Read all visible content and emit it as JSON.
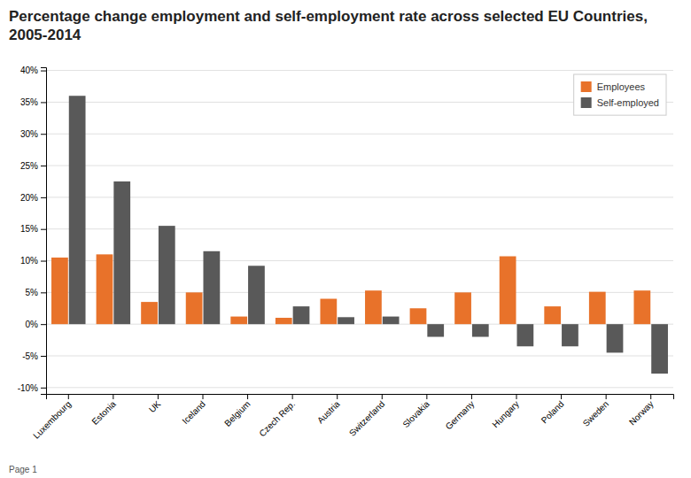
{
  "chart_data": {
    "type": "bar",
    "title": "Percentage change employment and self-employment rate across selected EU Countries, 2005-2014",
    "categories": [
      "Luxembourg",
      "Estonia",
      "UK",
      "Iceland",
      "Belgium",
      "Czech Rep.",
      "Austria",
      "Switzerland",
      "Slovakia",
      "Germany",
      "Hungary",
      "Poland",
      "Sweden",
      "Norway"
    ],
    "series": [
      {
        "name": "Employees",
        "color": "#E8722A",
        "values": [
          10.5,
          11.0,
          3.5,
          5.0,
          1.2,
          1.0,
          4.0,
          5.3,
          2.5,
          5.0,
          10.7,
          2.8,
          5.1,
          5.3
        ]
      },
      {
        "name": "Self-employed",
        "color": "#595959",
        "values": [
          36.0,
          22.5,
          15.5,
          11.5,
          9.2,
          2.8,
          1.1,
          1.2,
          -2.0,
          -2.0,
          -3.5,
          -3.5,
          -4.5,
          -7.8
        ]
      }
    ],
    "ylim": [
      -11,
      40.5
    ],
    "yticks": [
      {
        "value": -10,
        "label": "-10%"
      },
      {
        "value": -5,
        "label": "-5%"
      },
      {
        "value": 0,
        "label": "0%"
      },
      {
        "value": 5,
        "label": "5%"
      },
      {
        "value": 10,
        "label": "10%"
      },
      {
        "value": 15,
        "label": "15%"
      },
      {
        "value": 20,
        "label": "20%"
      },
      {
        "value": 25,
        "label": "25%"
      },
      {
        "value": 30,
        "label": "30%"
      },
      {
        "value": 35,
        "label": "35%"
      },
      {
        "value": 40,
        "label": "40%"
      }
    ],
    "grid": true,
    "legend": "upper right",
    "annotations": [
      "Page 1"
    ]
  }
}
